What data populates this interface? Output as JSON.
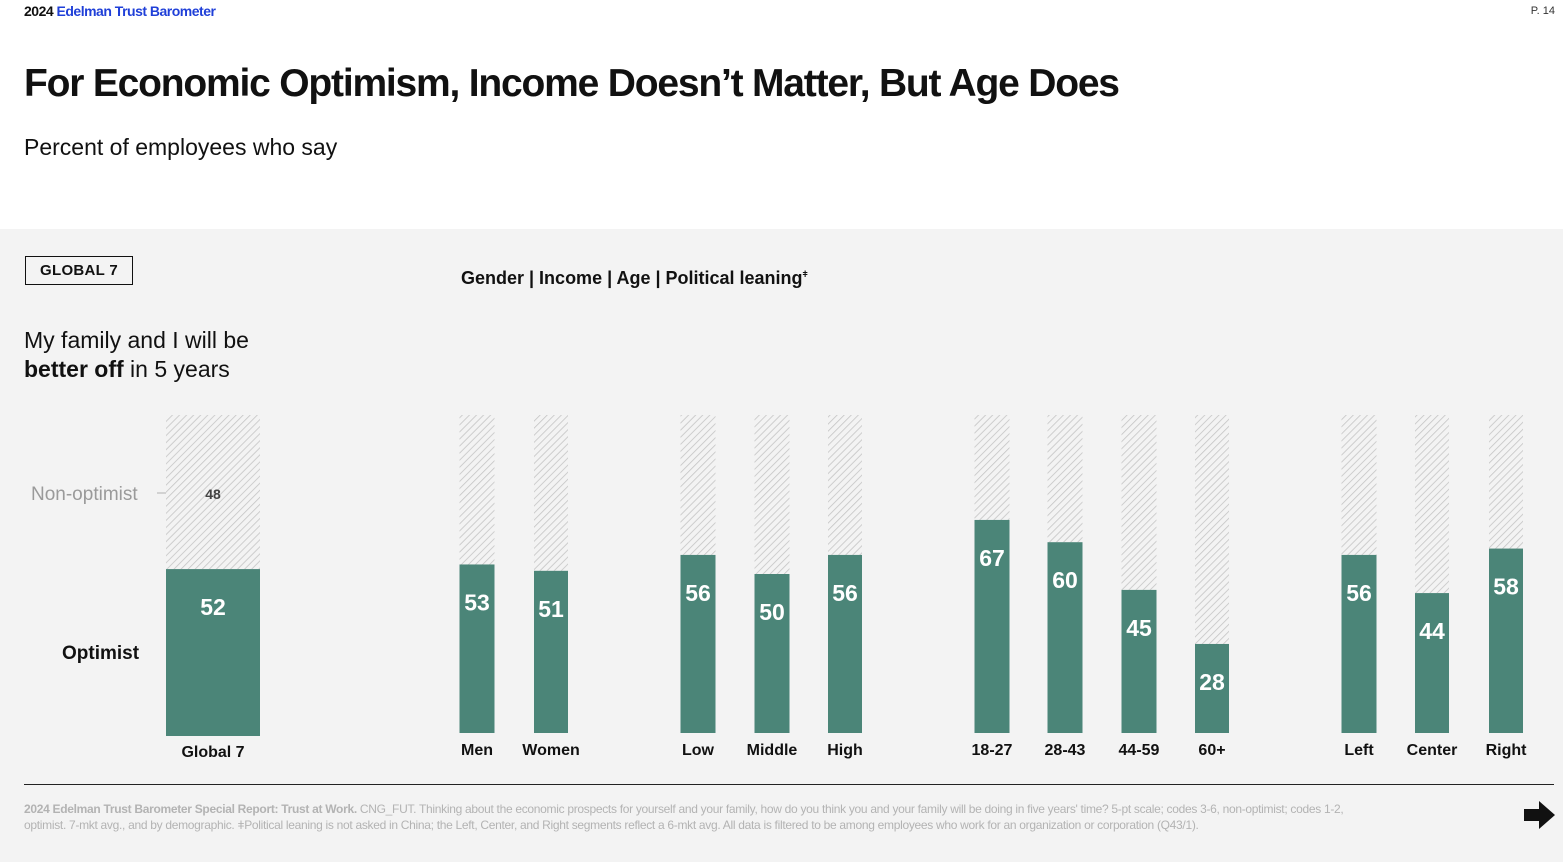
{
  "header": {
    "year": "2024",
    "brand": "Edelman Trust Barometer",
    "page": "P. 14"
  },
  "title": "For Economic Optimism, Income Doesn’t Matter, But Age Does",
  "subtitle": "Percent of employees who say",
  "region": "GLOBAL 7",
  "segments_header": "Gender | Income | Age | Political leaning",
  "segments_header_mark": "ǂ",
  "question": {
    "line1": "My family and I will be",
    "bold": "better off",
    "rest": " in 5 years"
  },
  "labels": {
    "non_optimist": "Non-optimist",
    "optimist": "Optimist"
  },
  "colors": {
    "optimist": "#4b8578",
    "non_optimist_hatch": "#c4c4c4",
    "panel": "#f3f3f3",
    "brand": "#1f3fd8"
  },
  "chart_data": {
    "type": "bar",
    "stacked": true,
    "ylim": [
      0,
      100
    ],
    "categories": [
      "Global 7",
      "Men",
      "Women",
      "Low",
      "Middle",
      "High",
      "18-27",
      "28-43",
      "44-59",
      "60+",
      "Left",
      "Center",
      "Right"
    ],
    "series": [
      {
        "name": "Optimist",
        "values": [
          52,
          53,
          51,
          56,
          50,
          56,
          67,
          60,
          45,
          28,
          56,
          44,
          58
        ]
      },
      {
        "name": "Non-optimist",
        "values": [
          48,
          47,
          49,
          44,
          50,
          44,
          33,
          40,
          55,
          72,
          44,
          56,
          42
        ]
      }
    ],
    "labeled_non_optimist": [
      "48",
      null,
      null,
      null,
      null,
      null,
      null,
      null,
      null,
      null,
      null,
      null,
      null
    ]
  },
  "footnote": {
    "bold": "2024 Edelman Trust Barometer Special Report: Trust at Work.",
    "text": " CNG_FUT. Thinking about the economic prospects for yourself and your family, how do you think you and your family will be doing in five years' time? 5-pt scale; codes 3-6, non-optimist; codes 1-2, optimist. 7-mkt avg., and by demographic. ǂPolitical leaning is not asked in China; the Left, Center, and Right segments reflect a 6-mkt avg. All data is filtered to be among employees who work for an organization or corporation (Q43/1)."
  },
  "nav": {
    "icon": "arrow-down-right-icon"
  }
}
